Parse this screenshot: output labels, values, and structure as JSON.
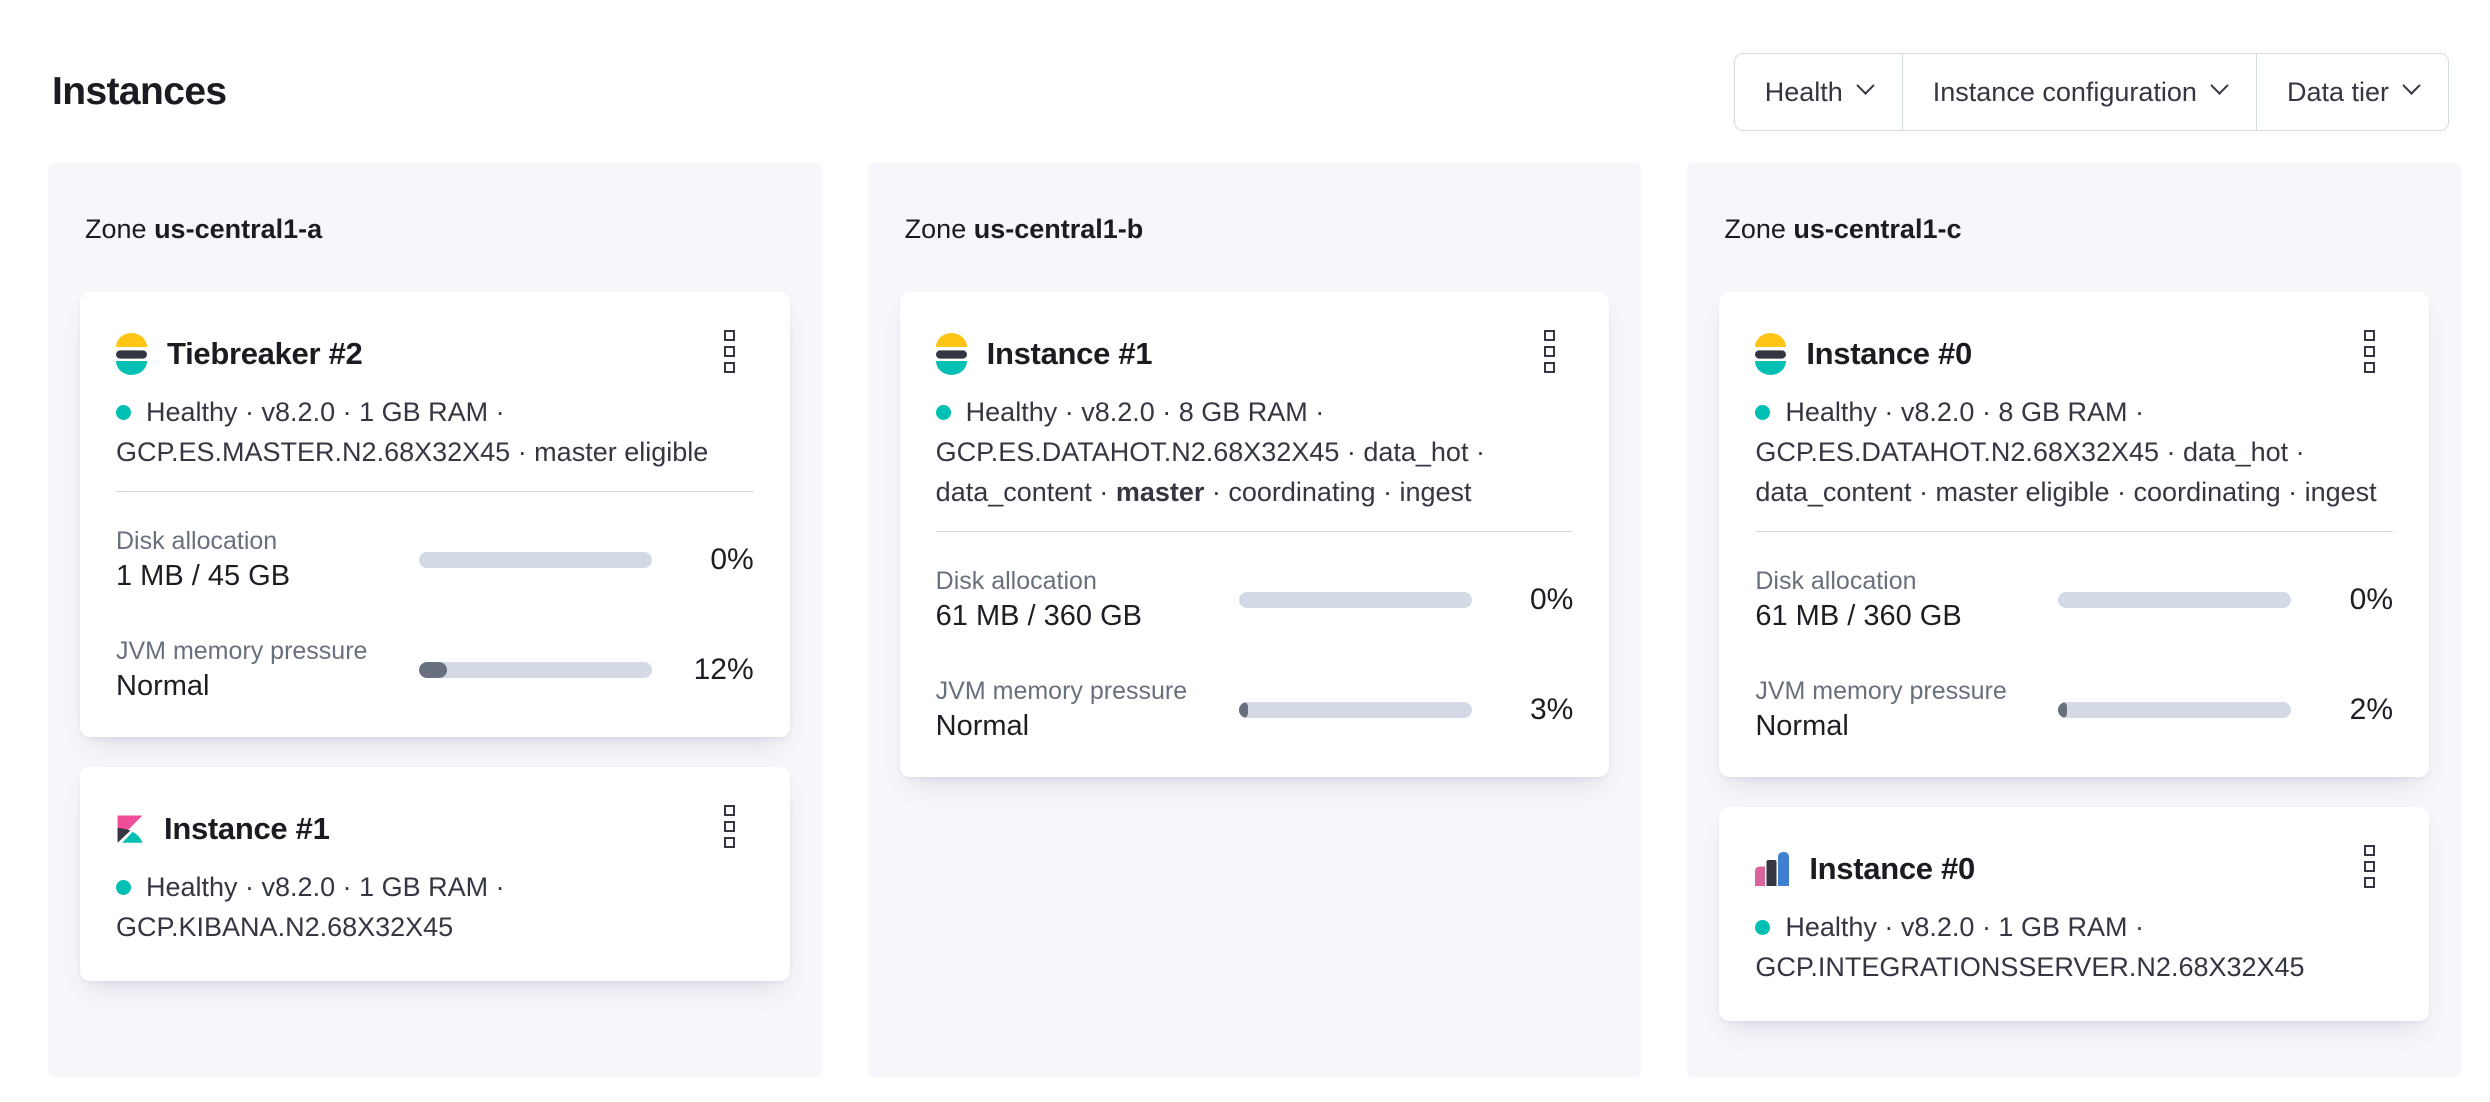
{
  "page": {
    "title": "Instances"
  },
  "filters": {
    "health": "Health",
    "instance_configuration": "Instance configuration",
    "data_tier": "Data tier"
  },
  "zone_word": "Zone",
  "colors": {
    "healthy_dot": "#00BFB3",
    "elastic_yellow": "#FEC514",
    "elastic_teal": "#00BFB3",
    "elastic_dark": "#343741",
    "kibana_pink": "#F04E98",
    "integrations_pink": "#D9639B",
    "integrations_blue": "#3E7FD0",
    "bar_track": "#D3DAE6",
    "bar_fill": "#69707D"
  },
  "zones": [
    {
      "name": "us-central1-a",
      "cards": [
        {
          "logo": "elasticsearch-logo",
          "title": "Tiebreaker #2",
          "health": "Healthy",
          "status_lines": [
            [
              {
                "text": "Healthy · v8.2.0 · 1 GB RAM ·"
              }
            ],
            [
              {
                "text": "GCP.ES.MASTER.N2.68X32X45 · master eligible"
              }
            ]
          ],
          "metrics": [
            {
              "label": "Disk allocation",
              "value": "1 MB / 45 GB",
              "percent_label": "0%",
              "percent": 0
            },
            {
              "label": "JVM memory pressure",
              "value": "Normal",
              "percent_label": "12%",
              "percent": 12
            }
          ]
        },
        {
          "logo": "kibana-logo",
          "title": "Instance #1",
          "health": "Healthy",
          "status_lines": [
            [
              {
                "text": "Healthy · v8.2.0 · 1 GB RAM ·"
              }
            ],
            [
              {
                "text": "GCP.KIBANA.N2.68X32X45"
              }
            ]
          ],
          "metrics": []
        }
      ]
    },
    {
      "name": "us-central1-b",
      "cards": [
        {
          "logo": "elasticsearch-logo",
          "title": "Instance #1",
          "health": "Healthy",
          "status_lines": [
            [
              {
                "text": "Healthy · v8.2.0 · 8 GB RAM ·"
              }
            ],
            [
              {
                "text": "GCP.ES.DATAHOT.N2.68X32X45 · data_hot ·"
              }
            ],
            [
              {
                "text": "data_content · "
              },
              {
                "text": "master",
                "bold": true
              },
              {
                "text": " · coordinating · ingest"
              }
            ]
          ],
          "metrics": [
            {
              "label": "Disk allocation",
              "value": "61 MB / 360 GB",
              "percent_label": "0%",
              "percent": 0
            },
            {
              "label": "JVM memory pressure",
              "value": "Normal",
              "percent_label": "3%",
              "percent": 3
            }
          ]
        }
      ]
    },
    {
      "name": "us-central1-c",
      "cards": [
        {
          "logo": "elasticsearch-logo",
          "title": "Instance #0",
          "health": "Healthy",
          "status_lines": [
            [
              {
                "text": "Healthy · v8.2.0 · 8 GB RAM ·"
              }
            ],
            [
              {
                "text": "GCP.ES.DATAHOT.N2.68X32X45 · data_hot ·"
              }
            ],
            [
              {
                "text": "data_content · master eligible · coordinating · ingest"
              }
            ]
          ],
          "metrics": [
            {
              "label": "Disk allocation",
              "value": "61 MB / 360 GB",
              "percent_label": "0%",
              "percent": 0
            },
            {
              "label": "JVM memory pressure",
              "value": "Normal",
              "percent_label": "2%",
              "percent": 2
            }
          ]
        },
        {
          "logo": "integrations-server-logo",
          "title": "Instance #0",
          "health": "Healthy",
          "status_lines": [
            [
              {
                "text": "Healthy · v8.2.0 · 1 GB RAM ·"
              }
            ],
            [
              {
                "text": "GCP.INTEGRATIONSSERVER.N2.68X32X45"
              }
            ]
          ],
          "metrics": []
        }
      ]
    }
  ]
}
